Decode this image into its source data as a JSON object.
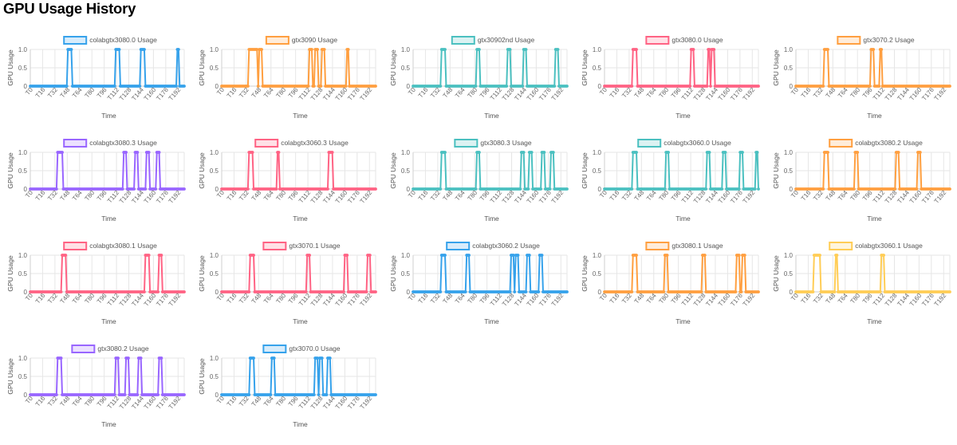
{
  "page": {
    "title": "GPU Usage History"
  },
  "chart_data": [
    {
      "type": "line",
      "legend": "colabgtx3080.0 Usage",
      "color": "#36A2EB",
      "segments": [
        [
          33,
          36
        ],
        [
          75,
          78
        ],
        [
          97,
          100
        ],
        [
          129,
          130
        ]
      ]
    },
    {
      "type": "line",
      "legend": "gtx3090 Usage",
      "color": "#FF9F40",
      "segments": [
        [
          24,
          25
        ],
        [
          26,
          31
        ],
        [
          33,
          35
        ],
        [
          77,
          79
        ],
        [
          82,
          84
        ],
        [
          88,
          90
        ],
        [
          110,
          111
        ]
      ]
    },
    {
      "type": "line",
      "legend": "gtx30902nd Usage",
      "color": "#4BC0C0",
      "segments": [
        [
          25,
          28
        ],
        [
          56,
          58
        ],
        [
          83,
          85
        ],
        [
          97,
          99
        ],
        [
          125,
          127
        ]
      ]
    },
    {
      "type": "line",
      "legend": "gtx3080.0 Usage",
      "color": "#FF6384",
      "segments": [
        [
          25,
          28
        ],
        [
          76,
          78
        ],
        [
          91,
          92
        ],
        [
          94,
          96
        ]
      ]
    },
    {
      "type": "line",
      "legend": "gtx3070.2 Usage",
      "color": "#FF9F40",
      "segments": [
        [
          25,
          28
        ],
        [
          66,
          68
        ],
        [
          74,
          75
        ]
      ]
    },
    {
      "type": "line",
      "legend": "colabgtx3080.3 Usage",
      "color": "#9966FF",
      "segments": [
        [
          24,
          28
        ],
        [
          82,
          84
        ],
        [
          92,
          94
        ],
        [
          102,
          104
        ],
        [
          111,
          113
        ]
      ]
    },
    {
      "type": "line",
      "legend": "colabgtx3060.3 Usage",
      "color": "#FF6384",
      "segments": [
        [
          24,
          27
        ],
        [
          49,
          50
        ],
        [
          94,
          97
        ]
      ]
    },
    {
      "type": "line",
      "legend": "gtx3080.3 Usage",
      "color": "#4BC0C0",
      "segments": [
        [
          25,
          28
        ],
        [
          56,
          58
        ],
        [
          95,
          97
        ],
        [
          102,
          104
        ],
        [
          113,
          115
        ],
        [
          121,
          123
        ]
      ]
    },
    {
      "type": "line",
      "legend": "colabgtx3060.0 Usage",
      "color": "#4BC0C0",
      "segments": [
        [
          25,
          28
        ],
        [
          54,
          56
        ],
        [
          90,
          92
        ],
        [
          104,
          106
        ],
        [
          119,
          121
        ],
        [
          133,
          134
        ]
      ]
    },
    {
      "type": "line",
      "legend": "colabgtx3080.2 Usage",
      "color": "#FF9F40",
      "segments": [
        [
          25,
          28
        ],
        [
          52,
          54
        ],
        [
          88,
          90
        ],
        [
          107,
          109
        ]
      ]
    },
    {
      "type": "line",
      "legend": "colabgtx3080.1 Usage",
      "color": "#FF6384",
      "segments": [
        [
          28,
          31
        ],
        [
          101,
          104
        ],
        [
          113,
          115
        ]
      ]
    },
    {
      "type": "line",
      "legend": "gtx3070.1 Usage",
      "color": "#FF6384",
      "segments": [
        [
          25,
          28
        ],
        [
          75,
          77
        ],
        [
          108,
          110
        ],
        [
          128,
          130
        ]
      ]
    },
    {
      "type": "line",
      "legend": "colabgtx3060.2 Usage",
      "color": "#36A2EB",
      "segments": [
        [
          25,
          28
        ],
        [
          47,
          49
        ],
        [
          86,
          88
        ],
        [
          90,
          92
        ],
        [
          100,
          102
        ],
        [
          111,
          113
        ]
      ]
    },
    {
      "type": "line",
      "legend": "gtx3080.1 Usage",
      "color": "#FF9F40",
      "segments": [
        [
          25,
          28
        ],
        [
          53,
          55
        ],
        [
          86,
          88
        ],
        [
          116,
          118
        ],
        [
          121,
          123
        ]
      ]
    },
    {
      "type": "line",
      "legend": "colabgtx3060.1 Usage",
      "color": "#FFCD56",
      "segments": [
        [
          16,
          19
        ],
        [
          19,
          21
        ],
        [
          35,
          36
        ],
        [
          75,
          77
        ]
      ]
    },
    {
      "type": "line",
      "legend": "gtx3080.2 Usage",
      "color": "#9966FF",
      "segments": [
        [
          24,
          27
        ],
        [
          75,
          77
        ],
        [
          84,
          86
        ],
        [
          95,
          97
        ],
        [
          113,
          115
        ]
      ]
    },
    {
      "type": "line",
      "legend": "gtx3070.0 Usage",
      "color": "#36A2EB",
      "segments": [
        [
          25,
          28
        ],
        [
          44,
          46
        ],
        [
          82,
          84
        ],
        [
          86,
          88
        ],
        [
          93,
          95
        ]
      ]
    }
  ],
  "shared": {
    "xlabel": "Time",
    "ylabel": "GPU Usage",
    "ylim": [
      0,
      1
    ],
    "yticks": [
      "0",
      "0.5",
      "1.0"
    ],
    "xticks": [
      "T0",
      "T16",
      "T32",
      "T48",
      "T64",
      "T80",
      "T96",
      "T112",
      "T128",
      "T144",
      "T160",
      "T176",
      "T192"
    ],
    "n_points": 136
  }
}
